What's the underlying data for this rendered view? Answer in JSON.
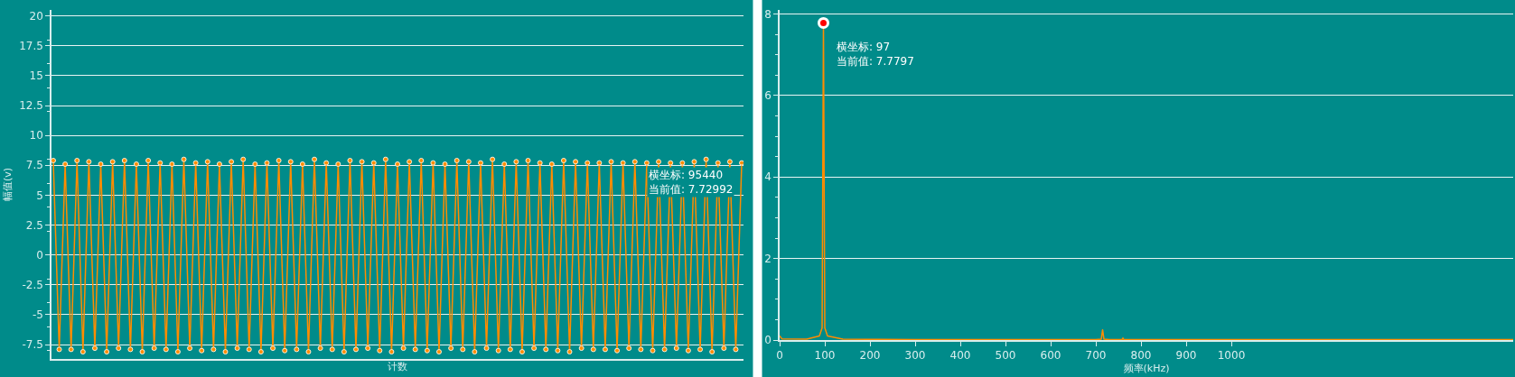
{
  "chart_data": [
    {
      "type": "line",
      "ylabel": "幅值(v)",
      "xlabel": "计数",
      "ylim": [
        -8.7,
        20.5
      ],
      "yticks": [
        -7.5,
        -5,
        -2.5,
        0,
        2.5,
        5,
        7.5,
        10,
        12.5,
        15,
        17.5,
        20
      ],
      "grid": "y",
      "marker": "circle",
      "line_style": "solid",
      "tick_labels": "y",
      "categories": [
        null,
        null,
        null,
        null,
        null,
        null,
        null,
        null,
        null,
        null,
        null,
        null,
        null,
        null,
        null,
        null,
        null,
        null,
        null,
        null,
        null,
        null,
        null,
        null,
        null,
        null,
        null,
        null,
        null,
        null,
        null,
        null,
        null,
        null,
        null,
        null,
        null,
        null,
        null,
        null,
        null,
        null,
        null,
        null,
        null,
        null,
        null,
        null,
        null,
        null,
        null,
        null,
        null,
        null,
        null,
        null,
        null,
        null,
        null,
        null,
        null,
        null,
        null,
        null,
        null,
        null,
        null,
        null,
        null,
        null,
        null,
        null,
        null,
        null,
        null,
        null,
        null,
        null,
        null,
        null,
        null,
        null,
        null,
        null,
        null,
        null,
        null,
        null,
        null,
        null,
        null,
        null,
        null,
        null,
        null,
        null,
        null,
        null,
        null,
        null,
        null,
        null,
        null,
        null,
        null,
        null,
        null,
        null,
        null,
        null,
        null,
        null,
        null,
        null,
        null,
        null,
        null
      ],
      "series": [
        {
          "color": "#ff8c00",
          "values": [
            7.9,
            -7.9,
            7.6,
            -7.9,
            7.9,
            -8.1,
            7.8,
            -7.8,
            7.6,
            -8.1,
            7.8,
            -7.8,
            7.9,
            -7.9,
            7.6,
            -8.1,
            7.9,
            -7.8,
            7.7,
            -7.9,
            7.6,
            -8.1,
            8.0,
            -7.8,
            7.7,
            -8.0,
            7.8,
            -7.9,
            7.6,
            -8.1,
            7.8,
            -7.8,
            8.0,
            -7.9,
            7.6,
            -8.1,
            7.7,
            -7.8,
            7.9,
            -8.0,
            7.8,
            -7.9,
            7.6,
            -8.1,
            8.0,
            -7.8,
            7.7,
            -7.9,
            7.6,
            -8.1,
            7.9,
            -7.9,
            7.8,
            -7.8,
            7.7,
            -8.0,
            8.0,
            -8.1,
            7.6,
            -7.8,
            7.8,
            -7.9,
            7.9,
            -8.0,
            7.7,
            -8.1,
            7.6,
            -7.8,
            7.9,
            -7.9,
            7.8,
            -8.1,
            7.7,
            -7.8,
            8.0,
            -8.0,
            7.6,
            -7.9,
            7.8,
            -8.1,
            7.9,
            -7.8,
            7.7,
            -7.9,
            7.6,
            -8.0,
            7.9,
            -8.1,
            7.8,
            -7.8,
            7.7,
            -7.9,
            7.7,
            -7.9,
            7.8,
            -8.0,
            7.7,
            -7.8,
            7.8,
            -7.9,
            7.7,
            -8.0,
            7.8,
            -7.9,
            7.7,
            -7.8,
            7.7,
            -8.0,
            7.8,
            -7.9,
            8.0,
            -8.1,
            7.7,
            -7.8,
            7.8,
            -7.9,
            7.7
          ]
        }
      ],
      "annotations": [
        "横坐标: 95440\n当前值: 7.72992"
      ]
    },
    {
      "type": "line",
      "xlabel": "频率(kHz)",
      "xlim": [
        0,
        1624
      ],
      "xticks": [
        0,
        100,
        200,
        300,
        400,
        500,
        600,
        700,
        800,
        900,
        1000
      ],
      "ylim": [
        0,
        8.1
      ],
      "yticks": [
        0,
        2,
        4,
        6,
        8
      ],
      "grid": "y",
      "marker": "none",
      "line_style": "solid",
      "series": [
        {
          "color": "#ff8c00",
          "x": [
            0,
            5,
            60,
            88,
            94,
            97,
            100,
            106,
            140,
            300,
            700,
            712,
            715,
            718,
            730,
            758,
            760,
            762,
            1000,
            1624
          ],
          "values": [
            0.1,
            0.03,
            0.02,
            0.1,
            0.3,
            7.7797,
            0.3,
            0.1,
            0.02,
            0.01,
            0.01,
            0.02,
            0.25,
            0.02,
            0.01,
            0.01,
            0.05,
            0.01,
            0.01,
            0.01
          ]
        }
      ],
      "annotations": [
        {
          "text": "横坐标: 97\n当前值: 7.7797",
          "x": 97,
          "y": 7.7797
        }
      ]
    }
  ]
}
